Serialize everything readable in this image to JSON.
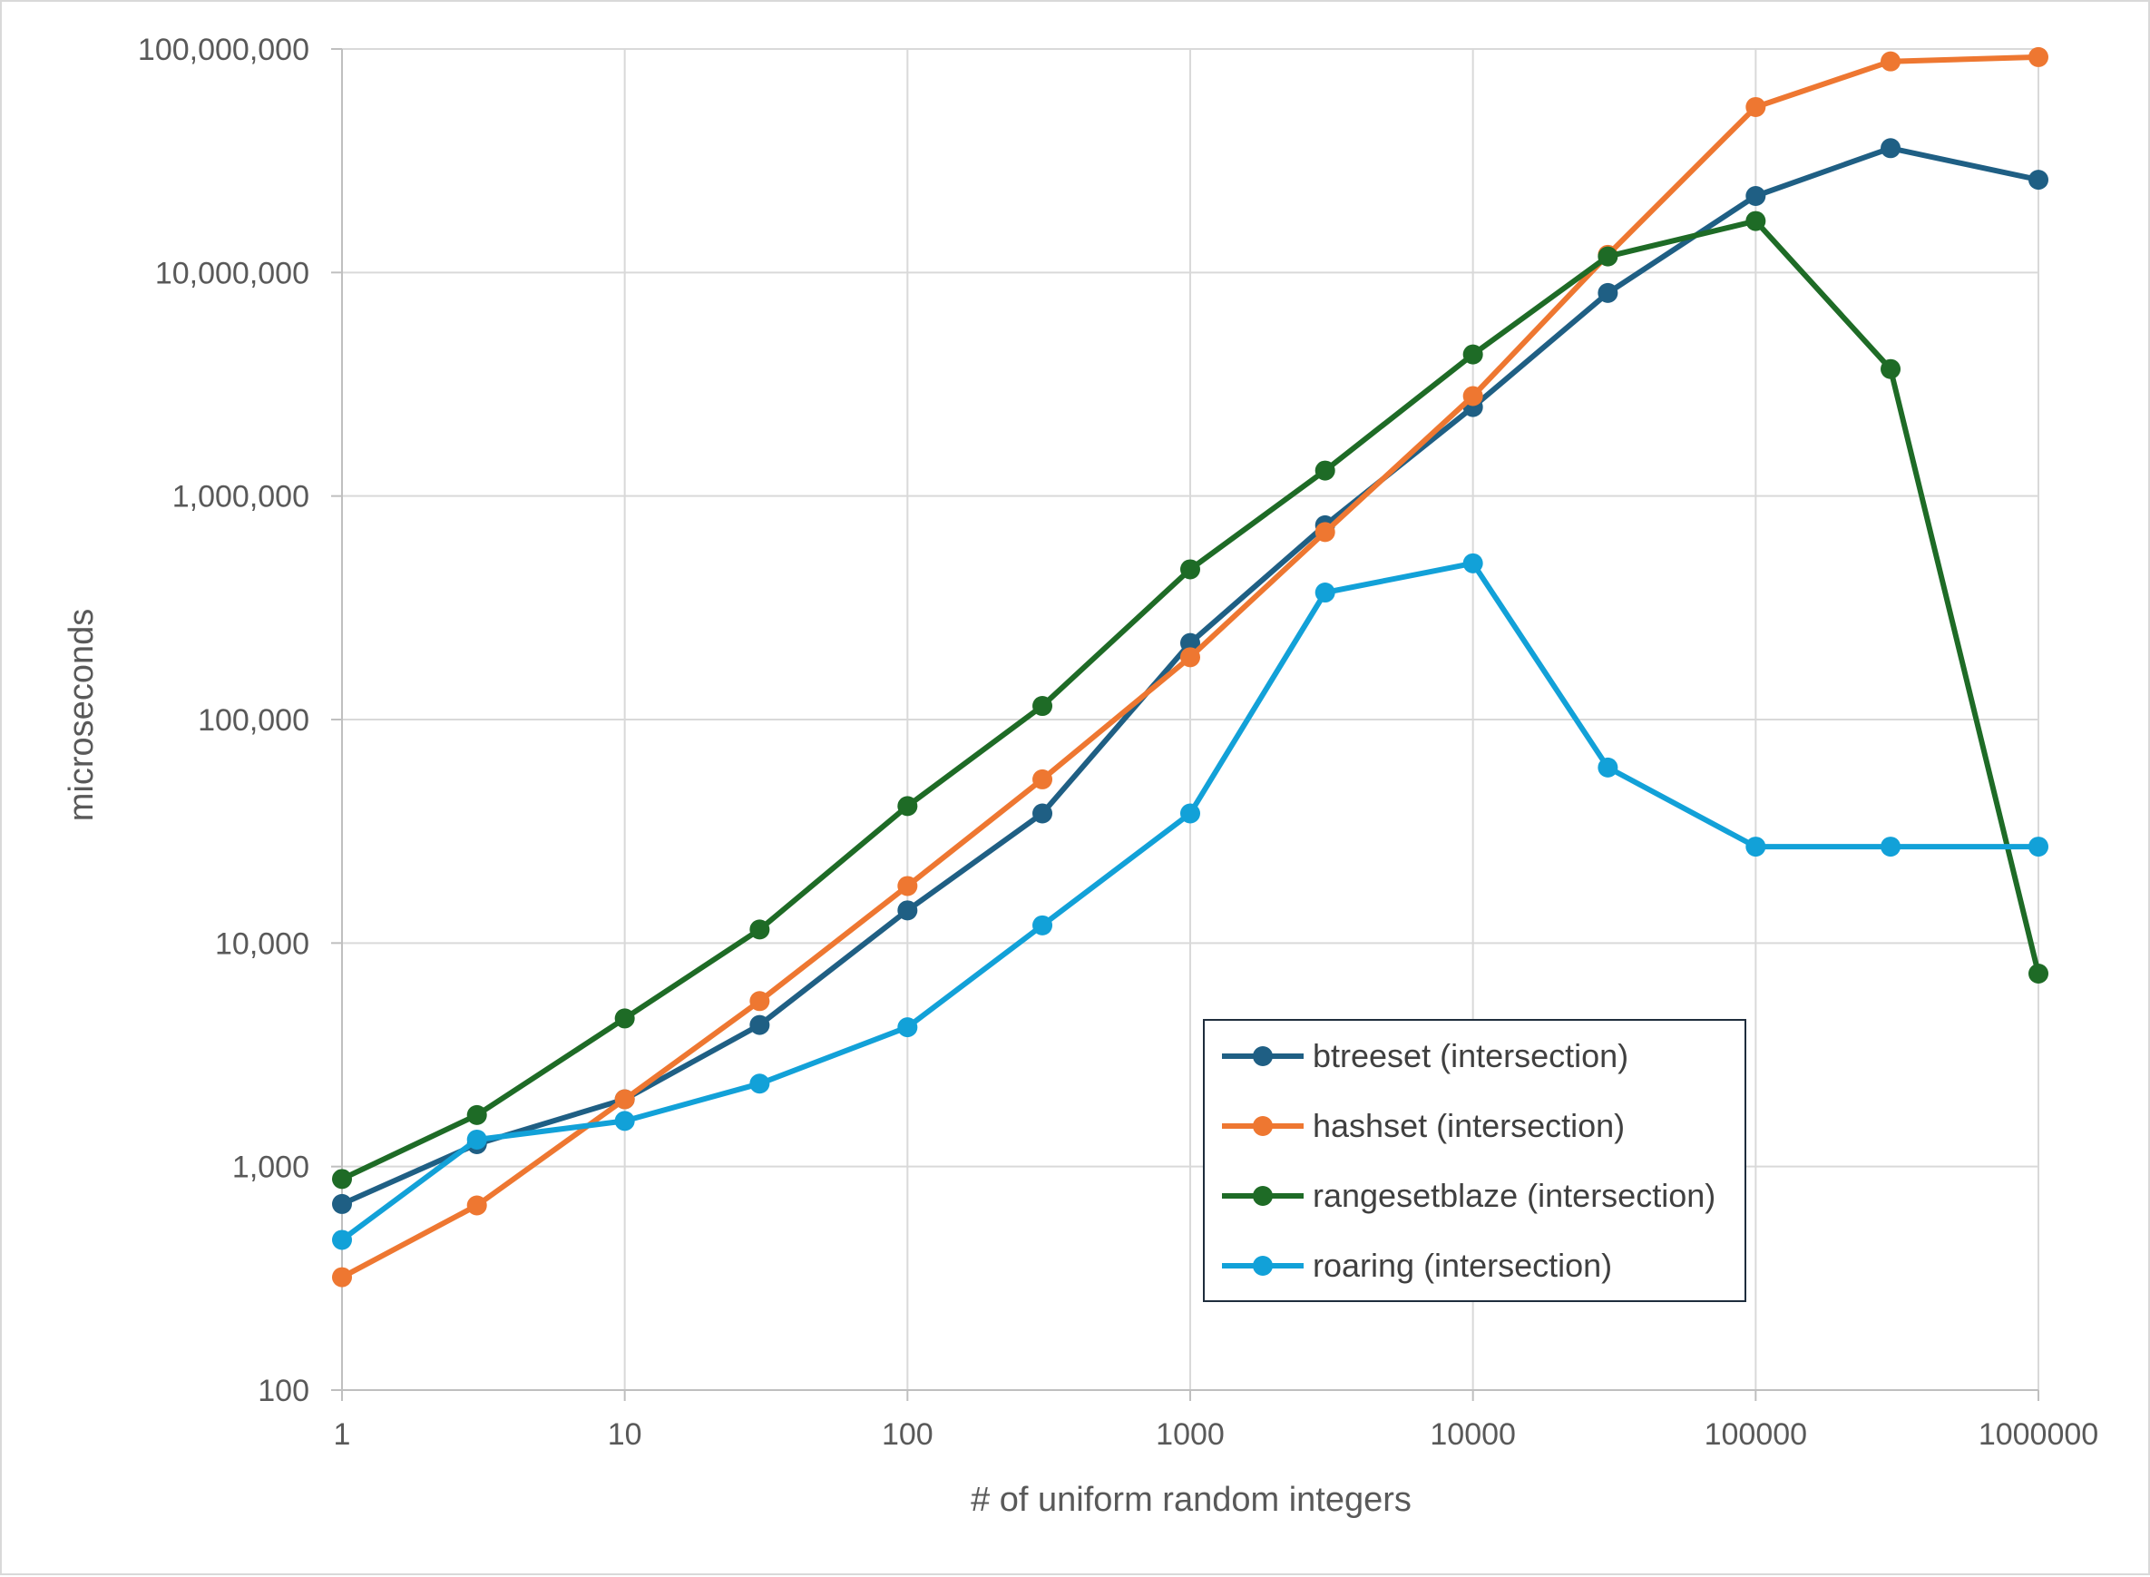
{
  "chart_data": {
    "type": "line",
    "title": "",
    "xlabel": "# of uniform random integers",
    "ylabel": "microseconds",
    "x_scale": "log",
    "y_scale": "log",
    "xlim": [
      1,
      1000000
    ],
    "ylim": [
      100,
      100000000
    ],
    "grid": true,
    "legend_position": "inside-lower-right",
    "x": [
      1,
      3,
      10,
      30,
      100,
      300,
      1000,
      3000,
      10000,
      30000,
      100000,
      300000,
      1000000
    ],
    "x_ticks": [
      "1",
      "10",
      "100",
      "1000",
      "10000",
      "100000",
      "1000000"
    ],
    "y_ticks": [
      "100",
      "1,000",
      "10,000",
      "100,000",
      "1,000,000",
      "10,000,000",
      "100,000,000"
    ],
    "series": [
      {
        "name": "btreeset (intersection)",
        "color": "#1f5f84",
        "values": [
          680,
          1260,
          2000,
          4300,
          14000,
          38000,
          220000,
          740000,
          2500000,
          8100000,
          22000000,
          36000000,
          26000000
        ]
      },
      {
        "name": "hashset (intersection)",
        "color": "#ee7731",
        "values": [
          320,
          670,
          2000,
          5500,
          18000,
          54000,
          190000,
          690000,
          2800000,
          12000000,
          55000000,
          88000000,
          92000000
        ]
      },
      {
        "name": "rangesetblaze (intersection)",
        "color": "#1e6b26",
        "values": [
          880,
          1700,
          4600,
          11500,
          41000,
          115000,
          470000,
          1300000,
          4300000,
          11800000,
          17000000,
          3700000,
          7300
        ]
      },
      {
        "name": "roaring (intersection)",
        "color": "#12a1d8",
        "values": [
          470,
          1320,
          1600,
          2350,
          4200,
          12000,
          38000,
          370000,
          500000,
          61000,
          27000,
          27000,
          27000
        ]
      }
    ]
  }
}
